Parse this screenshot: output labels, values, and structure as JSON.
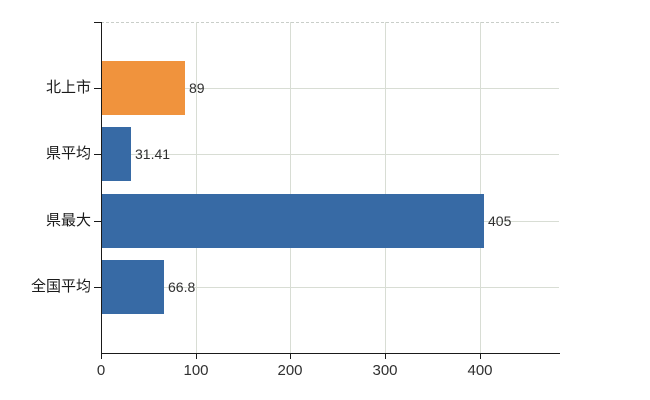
{
  "chart_data": {
    "type": "bar",
    "orientation": "horizontal",
    "title": "",
    "categories": [
      "北上市",
      "県平均",
      "県最大",
      "全国平均"
    ],
    "values": [
      89,
      31.41,
      405,
      66.8
    ],
    "value_labels": [
      "89",
      "31.41",
      "405",
      "66.8"
    ],
    "bar_colors": [
      "#F0933D",
      "#376AA5",
      "#376AA5",
      "#376AA5"
    ],
    "highlighted_category": "北上市",
    "x_axis": {
      "ticks": [
        0,
        100,
        200,
        300,
        400
      ],
      "tick_labels": [
        "0",
        "100",
        "200",
        "300",
        "400"
      ],
      "range": [
        0,
        484
      ]
    },
    "grid": {
      "vertical": true,
      "horizontal": true,
      "top_border": "dashed"
    },
    "legend": "none"
  },
  "colors": {
    "bar_blue": "#376AA5",
    "bar_orange": "#F0933D",
    "axis": "#1a1a1a",
    "gridline": "#d8ddd4",
    "label_text": "#1a1a1a",
    "background": "#ffffff"
  }
}
